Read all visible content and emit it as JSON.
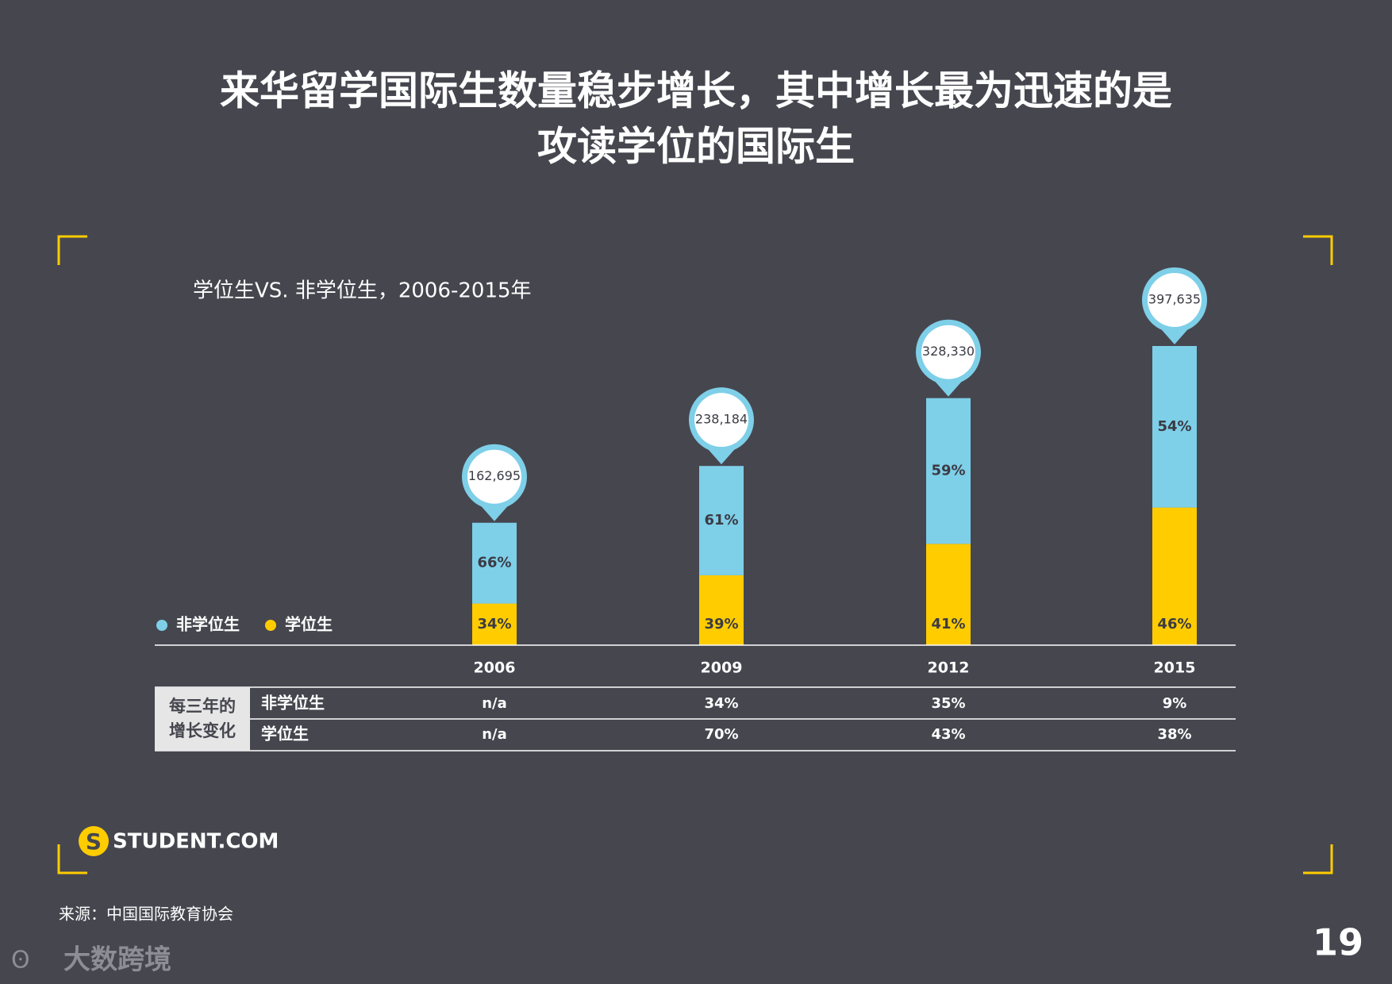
{
  "chart_data": {
    "type": "bar",
    "title": [
      "来华留学国际生数量稳步增长，其中增长最为迅速的是",
      "攻读学位的国际生"
    ],
    "subtitle": "学位生VS. 非学位生，2006-2015年",
    "categories": [
      "2006",
      "2009",
      "2012",
      "2015"
    ],
    "totals": [
      162695,
      238184,
      328330,
      397635
    ],
    "totals_labels": [
      "162,695",
      "238,184",
      "328,330",
      "397,635"
    ],
    "series": [
      {
        "name": "非学位生",
        "color": "#7ecfe8",
        "values": [
          66,
          61,
          59,
          54
        ],
        "value_labels": [
          "66%",
          "61%",
          "59%",
          "54%"
        ]
      },
      {
        "name": "学位生",
        "color": "#ffcc00",
        "values": [
          34,
          39,
          41,
          46
        ],
        "value_labels": [
          "34%",
          "39%",
          "41%",
          "46%"
        ]
      }
    ],
    "table": {
      "row_header": [
        "每三年的",
        "增长变化"
      ],
      "rows": [
        {
          "name": "非学位生",
          "values": [
            "n/a",
            "34%",
            "35%",
            "9%"
          ]
        },
        {
          "name": "学位生",
          "values": [
            "n/a",
            "70%",
            "43%",
            "38%"
          ]
        }
      ]
    },
    "source": "来源：中国国际教育协会",
    "logo": "STUDENT.COM",
    "page_number": "19",
    "watermark": "大数跨境"
  }
}
